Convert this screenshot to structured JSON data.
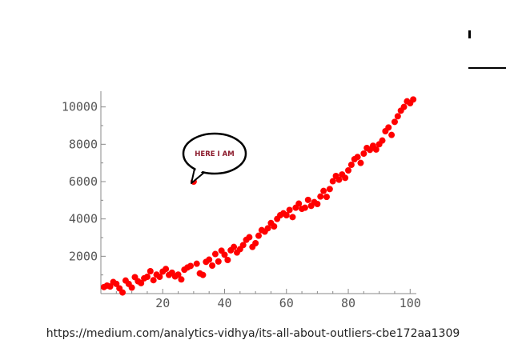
{
  "caption": "https://medium.com/analytics-vidhya/its-all-about-outliers-cbe172aa1309",
  "colors": {
    "points": "#ff0000",
    "axis": "#888888",
    "bubble_text": "#8b1a2b"
  },
  "chart_data": {
    "type": "scatter",
    "title": "",
    "xlabel": "",
    "ylabel": "",
    "xlim": [
      0,
      102
    ],
    "ylim": [
      0,
      10500
    ],
    "xticks": [
      20,
      40,
      60,
      80,
      100
    ],
    "yticks": [
      2000,
      4000,
      6000,
      8000,
      10000
    ],
    "grid": false,
    "series": [
      {
        "points": [
          [
            1,
            350
          ],
          [
            2,
            430
          ],
          [
            3,
            380
          ],
          [
            4,
            620
          ],
          [
            5,
            520
          ],
          [
            6,
            280
          ],
          [
            7,
            60
          ],
          [
            8,
            700
          ],
          [
            9,
            520
          ],
          [
            10,
            320
          ],
          [
            11,
            880
          ],
          [
            12,
            660
          ],
          [
            13,
            560
          ],
          [
            14,
            820
          ],
          [
            15,
            900
          ],
          [
            16,
            1200
          ],
          [
            17,
            720
          ],
          [
            18,
            1020
          ],
          [
            19,
            900
          ],
          [
            20,
            1180
          ],
          [
            21,
            1320
          ],
          [
            22,
            1000
          ],
          [
            23,
            1120
          ],
          [
            24,
            920
          ],
          [
            25,
            1020
          ],
          [
            26,
            760
          ],
          [
            27,
            1280
          ],
          [
            28,
            1400
          ],
          [
            29,
            1480
          ],
          [
            31,
            1600
          ],
          [
            32,
            1080
          ],
          [
            33,
            1000
          ],
          [
            34,
            1700
          ],
          [
            35,
            1820
          ],
          [
            36,
            1500
          ],
          [
            37,
            2120
          ],
          [
            38,
            1720
          ],
          [
            39,
            2300
          ],
          [
            40,
            2080
          ],
          [
            41,
            1800
          ],
          [
            42,
            2320
          ],
          [
            43,
            2500
          ],
          [
            44,
            2200
          ],
          [
            45,
            2380
          ],
          [
            46,
            2600
          ],
          [
            47,
            2880
          ],
          [
            48,
            3020
          ],
          [
            49,
            2500
          ],
          [
            50,
            2700
          ],
          [
            51,
            3100
          ],
          [
            52,
            3400
          ],
          [
            53,
            3320
          ],
          [
            54,
            3500
          ],
          [
            55,
            3780
          ],
          [
            56,
            3600
          ],
          [
            57,
            4000
          ],
          [
            58,
            4200
          ],
          [
            59,
            4300
          ],
          [
            60,
            4200
          ],
          [
            61,
            4480
          ],
          [
            62,
            4100
          ],
          [
            63,
            4600
          ],
          [
            64,
            4820
          ],
          [
            65,
            4540
          ],
          [
            66,
            4600
          ],
          [
            67,
            5020
          ],
          [
            68,
            4700
          ],
          [
            69,
            4900
          ],
          [
            70,
            4800
          ],
          [
            71,
            5200
          ],
          [
            72,
            5500
          ],
          [
            73,
            5180
          ],
          [
            74,
            5600
          ],
          [
            75,
            6020
          ],
          [
            76,
            6300
          ],
          [
            77,
            6100
          ],
          [
            78,
            6380
          ],
          [
            79,
            6200
          ],
          [
            80,
            6600
          ],
          [
            81,
            6900
          ],
          [
            82,
            7200
          ],
          [
            83,
            7320
          ],
          [
            84,
            7000
          ],
          [
            85,
            7500
          ],
          [
            86,
            7800
          ],
          [
            87,
            7700
          ],
          [
            88,
            7920
          ],
          [
            89,
            7720
          ],
          [
            90,
            8000
          ],
          [
            91,
            8200
          ],
          [
            92,
            8700
          ],
          [
            93,
            8900
          ],
          [
            94,
            8500
          ],
          [
            95,
            9200
          ],
          [
            96,
            9500
          ],
          [
            97,
            9800
          ],
          [
            98,
            10000
          ],
          [
            99,
            10300
          ],
          [
            100,
            10200
          ],
          [
            101,
            10400
          ]
        ]
      }
    ],
    "outlier": {
      "x": 30,
      "y": 6000
    },
    "annotations": [
      {
        "text": "HERE I AM"
      }
    ]
  }
}
